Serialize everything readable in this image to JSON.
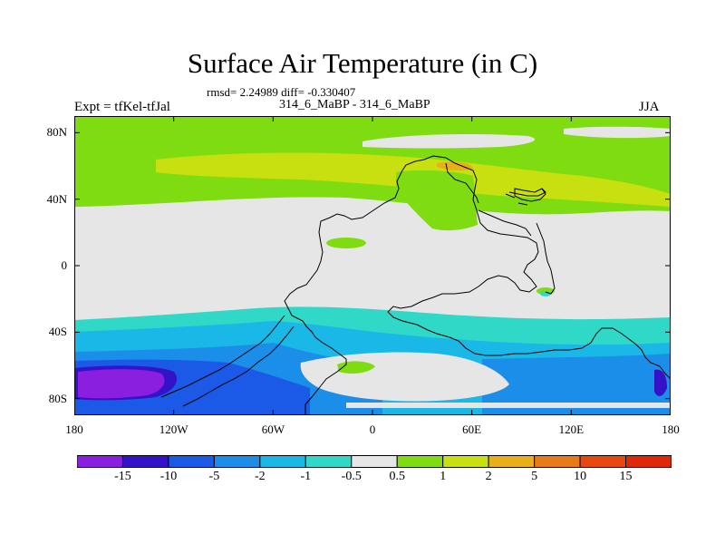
{
  "title": "Surface Air Temperature (in C)",
  "stats_line": "rmsd= 2.24989 diff= -0.330407",
  "experiment_label": "Expt = tfKel-tfJal",
  "cases_label": "314_6_MaBP - 314_6_MaBP",
  "season_label": "JJA",
  "lat_ticks": [
    {
      "label": "80N",
      "lat": 80
    },
    {
      "label": "40N",
      "lat": 40
    },
    {
      "label": "0",
      "lat": 0
    },
    {
      "label": "40S",
      "lat": -40
    },
    {
      "label": "80S",
      "lat": -80
    }
  ],
  "lon_ticks": [
    {
      "label": "180",
      "lon": -180
    },
    {
      "label": "120W",
      "lon": -120
    },
    {
      "label": "60W",
      "lon": -60
    },
    {
      "label": "0",
      "lon": 0
    },
    {
      "label": "60E",
      "lon": 60
    },
    {
      "label": "120E",
      "lon": 120
    },
    {
      "label": "180",
      "lon": 180
    }
  ],
  "colorbar": {
    "labels": [
      "-15",
      "-10",
      "-5",
      "-2",
      "-1",
      "-0.5",
      "0.5",
      "1",
      "2",
      "5",
      "10",
      "15"
    ],
    "colors": [
      "#8a1fe0",
      "#3312c8",
      "#1a5ae6",
      "#1a8ee8",
      "#1ab8e6",
      "#30d8c8",
      "#e6e6e6",
      "#7fdc10",
      "#c8e010",
      "#e8b018",
      "#e87a18",
      "#e84810",
      "#e02808"
    ]
  },
  "colors": {
    "neutral": "#e6e6e6",
    "warm_1": "#7fdc10",
    "warm_2": "#c8e010",
    "warm_3": "#e8b018",
    "cool_1": "#30d8c8",
    "cool_2": "#1ab8e6",
    "cool_3": "#1a8ee8",
    "cool_4": "#1a5ae6",
    "cool_5": "#3312c8",
    "cool_6": "#8a1fe0",
    "coast": "#000000"
  }
}
